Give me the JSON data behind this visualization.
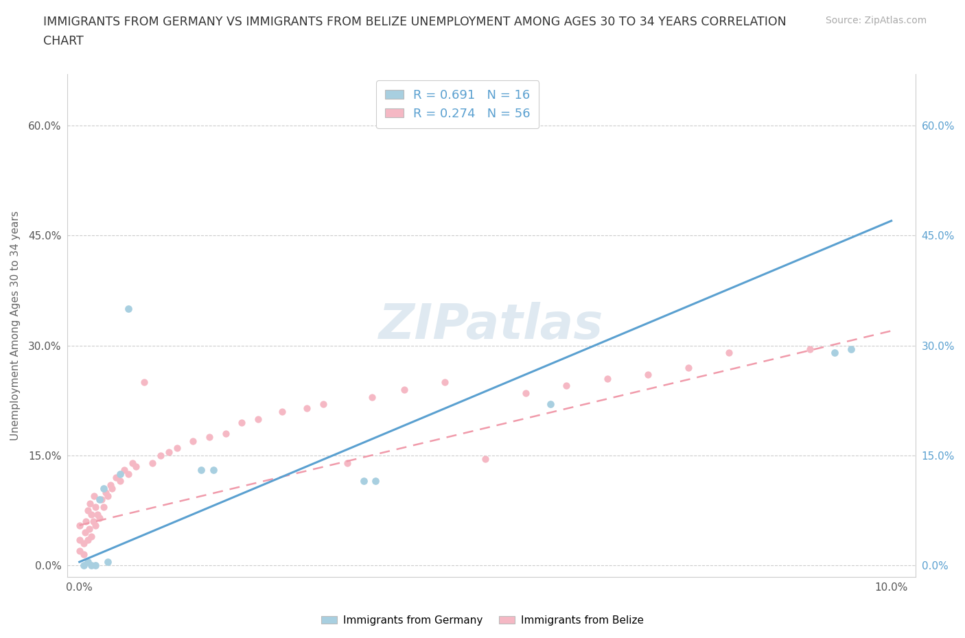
{
  "title_line1": "IMMIGRANTS FROM GERMANY VS IMMIGRANTS FROM BELIZE UNEMPLOYMENT AMONG AGES 30 TO 34 YEARS CORRELATION",
  "title_line2": "CHART",
  "source": "Source: ZipAtlas.com",
  "ylabel": "Unemployment Among Ages 30 to 34 years",
  "germany_color": "#a8cfe0",
  "belize_color": "#f5b8c4",
  "germany_line_color": "#5aa0d0",
  "belize_line_color": "#f09aaa",
  "watermark_color": "#b8cfe0",
  "R_germany": 0.691,
  "N_germany": 16,
  "R_belize": 0.274,
  "N_belize": 56,
  "germany_x": [
    0.05,
    0.1,
    0.15,
    0.2,
    0.25,
    0.3,
    0.35,
    0.5,
    0.6,
    1.5,
    1.65,
    3.5,
    3.65,
    5.8,
    9.3,
    9.5
  ],
  "germany_y": [
    0.0,
    0.5,
    0.0,
    0.0,
    9.0,
    10.5,
    0.5,
    12.5,
    35.0,
    13.0,
    13.0,
    11.5,
    11.5,
    22.0,
    29.0,
    29.5
  ],
  "belize_x": [
    0.0,
    0.0,
    0.0,
    0.05,
    0.05,
    0.07,
    0.08,
    0.1,
    0.1,
    0.12,
    0.13,
    0.15,
    0.15,
    0.17,
    0.18,
    0.2,
    0.2,
    0.22,
    0.25,
    0.27,
    0.3,
    0.32,
    0.35,
    0.38,
    0.4,
    0.45,
    0.5,
    0.55,
    0.6,
    0.65,
    0.7,
    0.8,
    0.9,
    1.0,
    1.1,
    1.2,
    1.4,
    1.6,
    1.8,
    2.0,
    2.2,
    2.5,
    2.8,
    3.0,
    3.3,
    3.6,
    4.0,
    4.5,
    5.0,
    5.5,
    6.0,
    6.5,
    7.0,
    7.5,
    8.0,
    9.0
  ],
  "belize_y": [
    2.0,
    3.5,
    5.5,
    1.5,
    3.0,
    4.5,
    6.0,
    3.5,
    7.5,
    5.0,
    8.5,
    4.0,
    7.0,
    6.0,
    9.5,
    5.5,
    8.0,
    7.0,
    6.5,
    9.0,
    8.0,
    10.0,
    9.5,
    11.0,
    10.5,
    12.0,
    11.5,
    13.0,
    12.5,
    14.0,
    13.5,
    25.0,
    14.0,
    15.0,
    15.5,
    16.0,
    17.0,
    17.5,
    18.0,
    19.5,
    20.0,
    21.0,
    21.5,
    22.0,
    14.0,
    23.0,
    24.0,
    25.0,
    14.5,
    23.5,
    24.5,
    25.5,
    26.0,
    27.0,
    29.0,
    29.5
  ],
  "background_color": "#ffffff",
  "xlim_min": -0.15,
  "xlim_max": 10.3,
  "ylim_min": -1.5,
  "ylim_max": 67.0,
  "ytick_positions": [
    0,
    15,
    30,
    45,
    60
  ],
  "ytick_labels": [
    "0.0%",
    "15.0%",
    "30.0%",
    "45.0%",
    "60.0%"
  ],
  "xtick_positions": [
    0,
    2,
    4,
    6,
    8,
    10
  ],
  "xtick_labels": [
    "0.0%",
    "",
    "",
    "",
    "",
    "10.0%"
  ],
  "germany_trend_x0": 0.0,
  "germany_trend_y0": 0.5,
  "germany_trend_x1": 10.0,
  "germany_trend_y1": 47.0,
  "belize_trend_x0": 0.0,
  "belize_trend_y0": 5.5,
  "belize_trend_x1": 10.0,
  "belize_trend_y1": 32.0
}
